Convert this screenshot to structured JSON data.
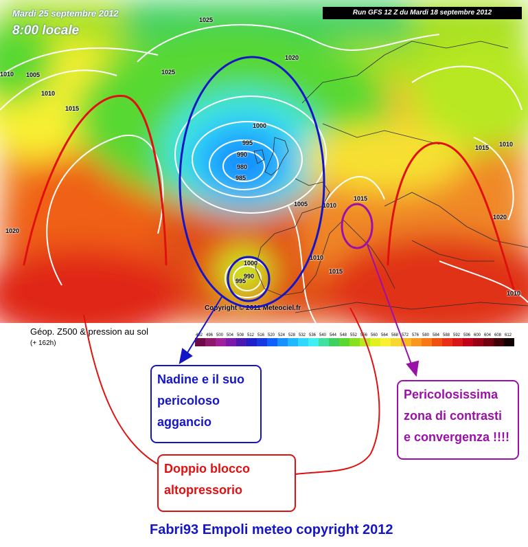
{
  "map": {
    "date": "Mardi 25 septembre 2012",
    "time": "8:00 locale",
    "run": "Run GFS 12 Z du Mardi 18 septembre 2012",
    "copyright": "Copyright © 2011 Meteociel.fr",
    "isobars": [
      "1025",
      "1020",
      "1025",
      "1005",
      "1010",
      "1015",
      "1000",
      "995",
      "990",
      "980",
      "985",
      "1005",
      "1010",
      "1015",
      "1010",
      "1015",
      "1020",
      "1010",
      "1000",
      "995",
      "990",
      "1020",
      "1010",
      "1015",
      "1010"
    ]
  },
  "legend": {
    "title": "Géop. Z500 & pression au sol",
    "subtitle": "(+ 162h)",
    "scale_values": [
      "492",
      "496",
      "500",
      "504",
      "508",
      "512",
      "516",
      "520",
      "524",
      "528",
      "532",
      "536",
      "540",
      "544",
      "548",
      "552",
      "556",
      "560",
      "564",
      "568",
      "572",
      "576",
      "580",
      "584",
      "588",
      "592",
      "596",
      "600",
      "604",
      "608",
      "612"
    ],
    "scale_colors": [
      "#6e0a4a",
      "#8b1b6a",
      "#a0229a",
      "#7a1aa8",
      "#4a1ab0",
      "#2020c8",
      "#1838e0",
      "#1060ff",
      "#1890ff",
      "#20b8ff",
      "#30d8ff",
      "#40f0f0",
      "#40e0a0",
      "#40d060",
      "#58d830",
      "#88e020",
      "#b8e820",
      "#e0f020",
      "#f8f030",
      "#f8d830",
      "#f8b828",
      "#f89820",
      "#f87818",
      "#f05010",
      "#e83018",
      "#d81818",
      "#c00018",
      "#980018",
      "#700010",
      "#400008",
      "#100000"
    ],
    "accent_colors": {
      "blue": "#1515c8",
      "red": "#e01010",
      "purple": "#9a10a8"
    }
  },
  "annotations": {
    "nadine": [
      "Nadine e il suo",
      "pericoloso",
      "aggancio"
    ],
    "blocco": [
      "Doppio blocco",
      "altopressorio"
    ],
    "contrasti": [
      "Pericolosissima",
      "zona di contrasti",
      "e convergenza !!!!"
    ]
  },
  "credit": "Fabri93  Empoli meteo copyright 2012"
}
